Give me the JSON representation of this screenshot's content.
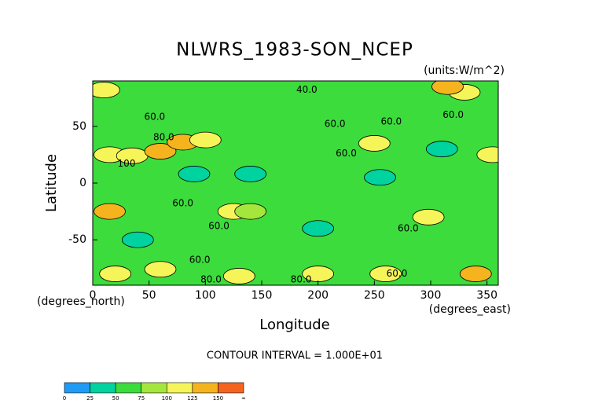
{
  "chart_data": {
    "type": "contour",
    "title": "NLWRS_1983-SON_NCEP",
    "subtitle": "(units:W/m^2)",
    "x_label": "Longitude",
    "x_units": "(degrees_east)",
    "y_label": "Latitude",
    "y_units": "(degrees_north)",
    "annotation": "CONTOUR INTERVAL = 1.000E+01",
    "xlim": [
      0,
      360
    ],
    "ylim": [
      -90,
      90
    ],
    "xticks": [
      0,
      50,
      100,
      150,
      200,
      250,
      300,
      350
    ],
    "yticks": [
      -50,
      0,
      50
    ],
    "background_value": 60,
    "levels": [
      0,
      25,
      50,
      75,
      100,
      125,
      150,
      {
        "value": 175,
        "label": "∞"
      }
    ],
    "colors": [
      "#1e9bf5",
      "#00d2a0",
      "#3cdc3c",
      "#a5e63c",
      "#f5f55a",
      "#f5b41e",
      "#f5641e"
    ],
    "features": [
      {
        "lon": 15,
        "lat": 25,
        "value": 110
      },
      {
        "lon": 35,
        "lat": 24,
        "value": 115
      },
      {
        "lon": 60,
        "lat": 28,
        "value": 125
      },
      {
        "lon": 80,
        "lat": 36,
        "value": 140
      },
      {
        "lon": 100,
        "lat": 38,
        "value": 100
      },
      {
        "lon": 15,
        "lat": -25,
        "value": 135
      },
      {
        "lon": 125,
        "lat": -25,
        "value": 110
      },
      {
        "lon": 140,
        "lat": -25,
        "value": 95
      },
      {
        "lon": 250,
        "lat": 35,
        "value": 110
      },
      {
        "lon": 298,
        "lat": -30,
        "value": 120
      },
      {
        "lon": 355,
        "lat": 25,
        "value": 120
      },
      {
        "lon": 90,
        "lat": 8,
        "value": 45
      },
      {
        "lon": 140,
        "lat": 8,
        "value": 45
      },
      {
        "lon": 255,
        "lat": 5,
        "value": 45
      },
      {
        "lon": 200,
        "lat": -40,
        "value": 45
      },
      {
        "lon": 40,
        "lat": -50,
        "value": 45
      },
      {
        "lon": 310,
        "lat": 30,
        "value": 45
      },
      {
        "lon": 20,
        "lat": -80,
        "value": 110
      },
      {
        "lon": 60,
        "lat": -76,
        "value": 100
      },
      {
        "lon": 130,
        "lat": -82,
        "value": 110
      },
      {
        "lon": 200,
        "lat": -80,
        "value": 110
      },
      {
        "lon": 260,
        "lat": -80,
        "value": 100
      },
      {
        "lon": 340,
        "lat": -80,
        "value": 125
      },
      {
        "lon": 10,
        "lat": 82,
        "value": 100
      },
      {
        "lon": 330,
        "lat": 80,
        "value": 115
      },
      {
        "lon": 315,
        "lat": 85,
        "value": 125
      }
    ],
    "contour_labels": [
      {
        "label": "40.0",
        "lon": 190,
        "lat": 82
      },
      {
        "label": "60.0",
        "lon": 55,
        "lat": 58
      },
      {
        "label": "60.0",
        "lon": 215,
        "lat": 52
      },
      {
        "label": "60.0",
        "lon": 265,
        "lat": 54
      },
      {
        "label": "60.0",
        "lon": 320,
        "lat": 60
      },
      {
        "label": "60.0",
        "lon": 225,
        "lat": 26
      },
      {
        "label": "60.0",
        "lon": 80,
        "lat": -18
      },
      {
        "label": "60.0",
        "lon": 112,
        "lat": -38
      },
      {
        "label": "60.0",
        "lon": 280,
        "lat": -40
      },
      {
        "label": "60.0",
        "lon": 270,
        "lat": -80
      },
      {
        "label": "60.0",
        "lon": 95,
        "lat": -68
      },
      {
        "label": "80.0",
        "lon": 63,
        "lat": 40
      },
      {
        "label": "80.0",
        "lon": 105,
        "lat": -85
      },
      {
        "label": "80.0",
        "lon": 185,
        "lat": -85
      },
      {
        "label": "100",
        "lon": 30,
        "lat": 17
      }
    ]
  }
}
